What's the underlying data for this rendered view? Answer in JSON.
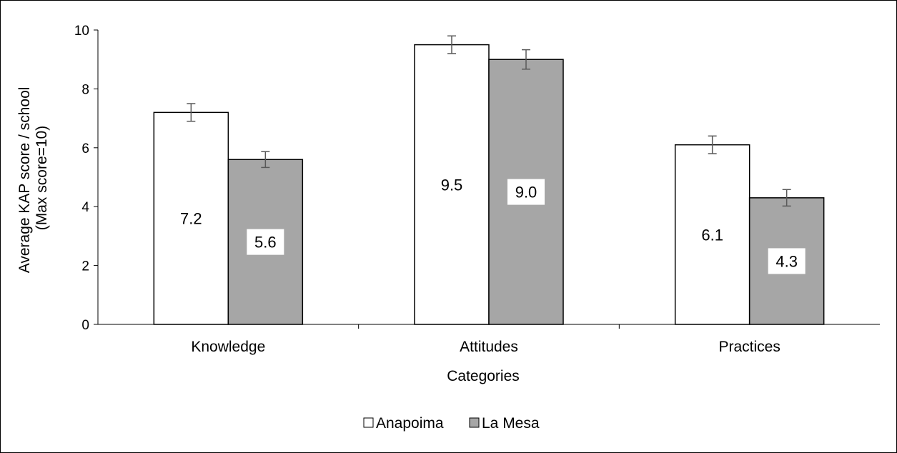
{
  "chart_data": {
    "type": "bar",
    "categories": [
      "Knowledge",
      "Attitudes",
      "Practices"
    ],
    "series": [
      {
        "name": "Anapoima",
        "values": [
          7.2,
          9.5,
          6.1
        ],
        "error": [
          0.3,
          0.3,
          0.3
        ],
        "labels": [
          "7.2",
          "9.5",
          "6.1"
        ],
        "color": "#ffffff"
      },
      {
        "name": "La Mesa",
        "values": [
          5.6,
          9.0,
          4.3
        ],
        "error": [
          0.27,
          0.33,
          0.28
        ],
        "labels": [
          "5.6",
          "9.0",
          "4.3"
        ],
        "color": "#a6a6a6"
      }
    ],
    "xlabel": "Categories",
    "ylabel_line1": "Average KAP score / school",
    "ylabel_line2": "(Max score=10)",
    "ylim": [
      0,
      10
    ],
    "yticks": [
      0,
      2,
      4,
      6,
      8,
      10
    ],
    "ytick_labels": [
      "0",
      "2",
      "4",
      "6",
      "8",
      "10"
    ],
    "grid": false,
    "legend": "bottom-center",
    "colors": {
      "bar_outline": "#000000",
      "error_bar": "#595959"
    }
  }
}
